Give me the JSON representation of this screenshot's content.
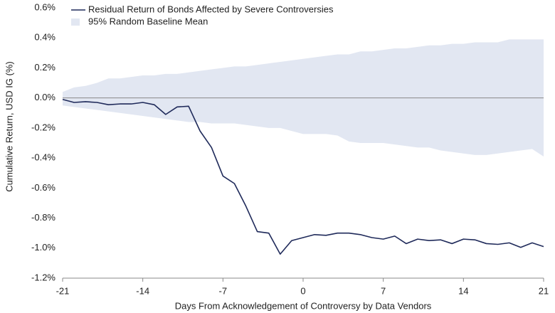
{
  "chart_data": {
    "type": "line",
    "x_label": "Days From Acknowledgement of Controversy by Data Vendors",
    "y_label": "Cumulative Return, USD IG (%)",
    "x": [
      -21,
      -20,
      -19,
      -18,
      -17,
      -16,
      -15,
      -14,
      -13,
      -12,
      -11,
      -10,
      -9,
      -8,
      -7,
      -6,
      -5,
      -4,
      -3,
      -2,
      -1,
      0,
      1,
      2,
      3,
      4,
      5,
      6,
      7,
      8,
      9,
      10,
      11,
      12,
      13,
      14,
      15,
      16,
      17,
      18,
      19,
      20,
      21
    ],
    "series": [
      {
        "name": "Residual Return of Bonds Affected by Severe Controversies",
        "color": "#1f2a5a",
        "values": [
          -0.01,
          -0.03,
          -0.025,
          -0.03,
          -0.045,
          -0.04,
          -0.04,
          -0.03,
          -0.045,
          -0.11,
          -0.06,
          -0.055,
          -0.22,
          -0.33,
          -0.52,
          -0.57,
          -0.72,
          -0.89,
          -0.9,
          -1.04,
          -0.95,
          -0.93,
          -0.91,
          -0.915,
          -0.9,
          -0.9,
          -0.91,
          -0.93,
          -0.94,
          -0.92,
          -0.97,
          -0.94,
          -0.95,
          -0.945,
          -0.97,
          -0.94,
          -0.945,
          -0.97,
          -0.975,
          -0.965,
          -0.995,
          -0.965,
          -0.99
        ]
      },
      {
        "name": "95% Random Baseline Mean",
        "color": "#e2e7f2",
        "type": "band",
        "upper": [
          0.04,
          0.07,
          0.08,
          0.1,
          0.13,
          0.13,
          0.14,
          0.15,
          0.15,
          0.16,
          0.16,
          0.17,
          0.18,
          0.19,
          0.2,
          0.21,
          0.21,
          0.22,
          0.23,
          0.24,
          0.25,
          0.26,
          0.27,
          0.28,
          0.29,
          0.29,
          0.31,
          0.31,
          0.32,
          0.33,
          0.33,
          0.34,
          0.35,
          0.35,
          0.36,
          0.36,
          0.37,
          0.37,
          0.37,
          0.39,
          0.39,
          0.39,
          0.39
        ],
        "lower": [
          -0.05,
          -0.06,
          -0.07,
          -0.08,
          -0.09,
          -0.1,
          -0.11,
          -0.12,
          -0.13,
          -0.14,
          -0.15,
          -0.16,
          -0.16,
          -0.17,
          -0.17,
          -0.17,
          -0.18,
          -0.19,
          -0.2,
          -0.2,
          -0.22,
          -0.24,
          -0.24,
          -0.24,
          -0.25,
          -0.29,
          -0.3,
          -0.3,
          -0.3,
          -0.31,
          -0.32,
          -0.33,
          -0.33,
          -0.35,
          -0.36,
          -0.37,
          -0.38,
          -0.38,
          -0.37,
          -0.36,
          -0.35,
          -0.34,
          -0.39
        ]
      }
    ],
    "xlim": [
      -21,
      21
    ],
    "xticks": [
      -21,
      -14,
      -7,
      0,
      7,
      14,
      21
    ],
    "ylim": [
      -1.2,
      0.6
    ],
    "yticks": [
      {
        "value": -1.2,
        "label": "-1.2%"
      },
      {
        "value": -1.0,
        "label": "-1.0%"
      },
      {
        "value": -0.8,
        "label": "-0.8%"
      },
      {
        "value": -0.6,
        "label": "-0.6%"
      },
      {
        "value": -0.4,
        "label": "-0.4%"
      },
      {
        "value": -0.2,
        "label": "-0.2%"
      },
      {
        "value": 0,
        "label": "0.0%"
      },
      {
        "value": 0.2,
        "label": "0.2%"
      },
      {
        "value": 0.4,
        "label": "0.4%"
      },
      {
        "value": 0.6,
        "label": "0.6%"
      }
    ],
    "zero_line": true,
    "legend": "top-left"
  }
}
